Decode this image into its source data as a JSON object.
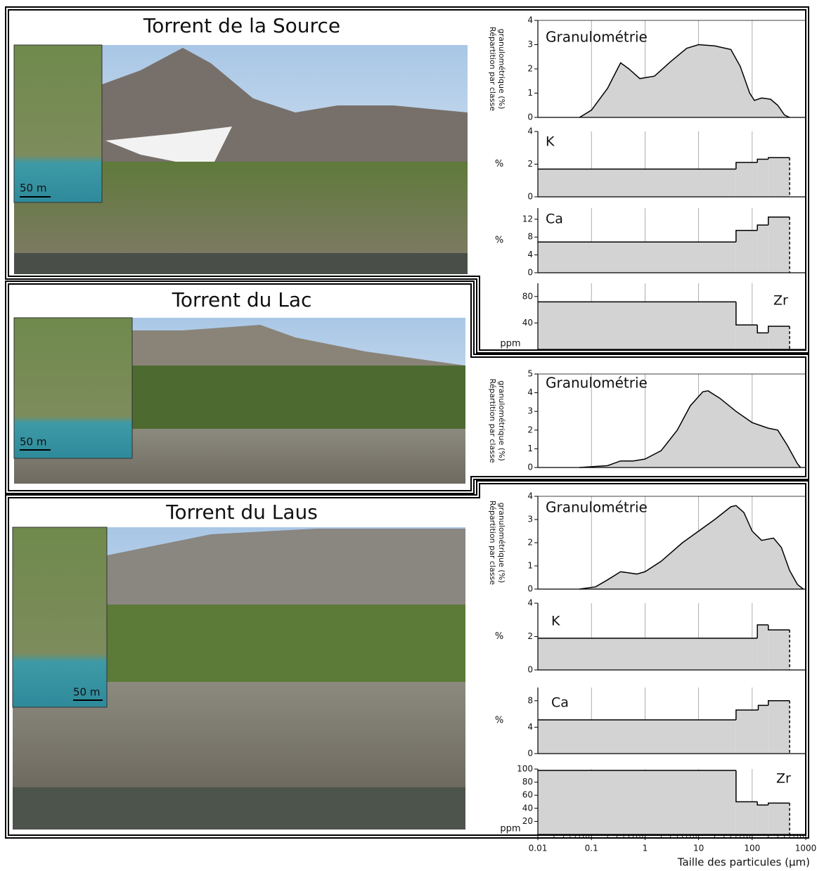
{
  "panels": [
    {
      "title": "Torrent de la Source",
      "scale": "50 m"
    },
    {
      "title": "Torrent du Lac",
      "scale": "50 m"
    },
    {
      "title": "Torrent du Laus",
      "scale": "50 m"
    }
  ],
  "chart_data": [
    {
      "type": "area",
      "annotation": "Granulométrie",
      "ylabel": [
        "Répartition par classe",
        "granulométrique (%)"
      ],
      "color": "#d3d3d3",
      "log_x": true,
      "xlim": [
        0.01,
        1000
      ],
      "ylim": [
        0,
        4
      ],
      "yticks": [
        0,
        1,
        2,
        3,
        4
      ],
      "x": [
        0.06,
        0.1,
        0.2,
        0.35,
        0.5,
        0.8,
        1.5,
        3,
        6,
        10,
        20,
        40,
        60,
        90,
        110,
        150,
        220,
        300,
        400,
        500
      ],
      "values": [
        0,
        0.3,
        1.2,
        2.25,
        2.0,
        1.6,
        1.7,
        2.3,
        2.85,
        3.0,
        2.95,
        2.8,
        2.1,
        1.0,
        0.7,
        0.8,
        0.75,
        0.5,
        0.1,
        0
      ]
    },
    {
      "type": "histogram",
      "annotation": "K",
      "ylabel": "%",
      "color": "#d3d3d3",
      "log_x": true,
      "xlim": [
        0.01,
        1000
      ],
      "ylim": [
        0,
        4
      ],
      "yticks": [
        0,
        2,
        4
      ],
      "bins": [
        0.01,
        50,
        125,
        200,
        500
      ],
      "values": [
        1.7,
        2.1,
        2.3,
        2.4
      ]
    },
    {
      "type": "histogram",
      "annotation": "Ca",
      "ylabel": "%",
      "color": "#d3d3d3",
      "log_x": true,
      "xlim": [
        0.01,
        1000
      ],
      "ylim": [
        0,
        14.5
      ],
      "yticks": [
        0,
        4,
        8,
        12
      ],
      "bins": [
        0.01,
        50,
        125,
        200,
        500
      ],
      "values": [
        6.9,
        9.5,
        10.7,
        12.5
      ]
    },
    {
      "type": "histogram",
      "annotation": "Zr",
      "ylabel": "ppm",
      "color": "#d3d3d3",
      "log_x": true,
      "xlim": [
        0.01,
        1000
      ],
      "ylim": [
        0,
        100
      ],
      "yticks": [
        40,
        80
      ],
      "bins": [
        0.01,
        50,
        125,
        200,
        500
      ],
      "values": [
        72,
        37,
        25,
        35
      ]
    },
    {
      "type": "area",
      "annotation": "Granulométrie",
      "ylabel": [
        "Répartition par classe",
        "granulométrique (%)"
      ],
      "color": "#d3d3d3",
      "log_x": true,
      "xlim": [
        0.01,
        1000
      ],
      "ylim": [
        0,
        5
      ],
      "yticks": [
        0,
        1,
        2,
        3,
        4,
        5
      ],
      "x": [
        0.06,
        0.2,
        0.35,
        0.6,
        1,
        2,
        4,
        7,
        12,
        15,
        25,
        50,
        100,
        200,
        300,
        450,
        700,
        800
      ],
      "values": [
        0,
        0.1,
        0.35,
        0.35,
        0.45,
        0.9,
        2.0,
        3.3,
        4.05,
        4.1,
        3.7,
        3.0,
        2.4,
        2.1,
        2.0,
        1.2,
        0.2,
        0
      ]
    },
    {
      "type": "area",
      "annotation": "Granulométrie",
      "ylabel": [
        "Répartition par classe",
        "granulométrique (%)"
      ],
      "color": "#d3d3d3",
      "log_x": true,
      "xlim": [
        0.01,
        1000
      ],
      "ylim": [
        0,
        4
      ],
      "yticks": [
        0,
        1,
        2,
        3,
        4
      ],
      "x": [
        0.06,
        0.12,
        0.2,
        0.35,
        0.7,
        1,
        2,
        5,
        10,
        20,
        40,
        50,
        70,
        100,
        150,
        250,
        350,
        500,
        700,
        900
      ],
      "values": [
        0,
        0.1,
        0.4,
        0.75,
        0.65,
        0.75,
        1.2,
        2.0,
        2.5,
        3.0,
        3.55,
        3.6,
        3.3,
        2.5,
        2.1,
        2.2,
        1.8,
        0.8,
        0.2,
        0
      ]
    },
    {
      "type": "histogram",
      "annotation": "K",
      "ylabel": "%",
      "color": "#d3d3d3",
      "log_x": true,
      "xlim": [
        0.01,
        1000
      ],
      "ylim": [
        0,
        4
      ],
      "yticks": [
        0,
        2,
        4
      ],
      "bins": [
        0.01,
        125,
        200,
        500
      ],
      "values": [
        1.9,
        2.7,
        2.4
      ]
    },
    {
      "type": "histogram",
      "annotation": "Ca",
      "ylabel": "%",
      "color": "#d3d3d3",
      "log_x": true,
      "xlim": [
        0.01,
        1000
      ],
      "ylim": [
        0,
        10
      ],
      "yticks": [
        0,
        4,
        8
      ],
      "bins": [
        0.01,
        50,
        130,
        200,
        500
      ],
      "values": [
        5.1,
        6.6,
        7.3,
        8.0
      ]
    },
    {
      "type": "histogram",
      "annotation": "Zr",
      "ylabel": "ppm",
      "color": "#d3d3d3",
      "log_x": true,
      "xlim": [
        0.01,
        1000
      ],
      "ylim": [
        0,
        100
      ],
      "yticks": [
        20,
        40,
        60,
        80,
        100
      ],
      "bins": [
        0.01,
        50,
        125,
        200,
        500
      ],
      "values": [
        98,
        50,
        45,
        48
      ],
      "xticks": [
        0.01,
        0.1,
        1,
        10,
        100,
        1000
      ],
      "xlabel": "Taille des particules (µm)"
    }
  ]
}
